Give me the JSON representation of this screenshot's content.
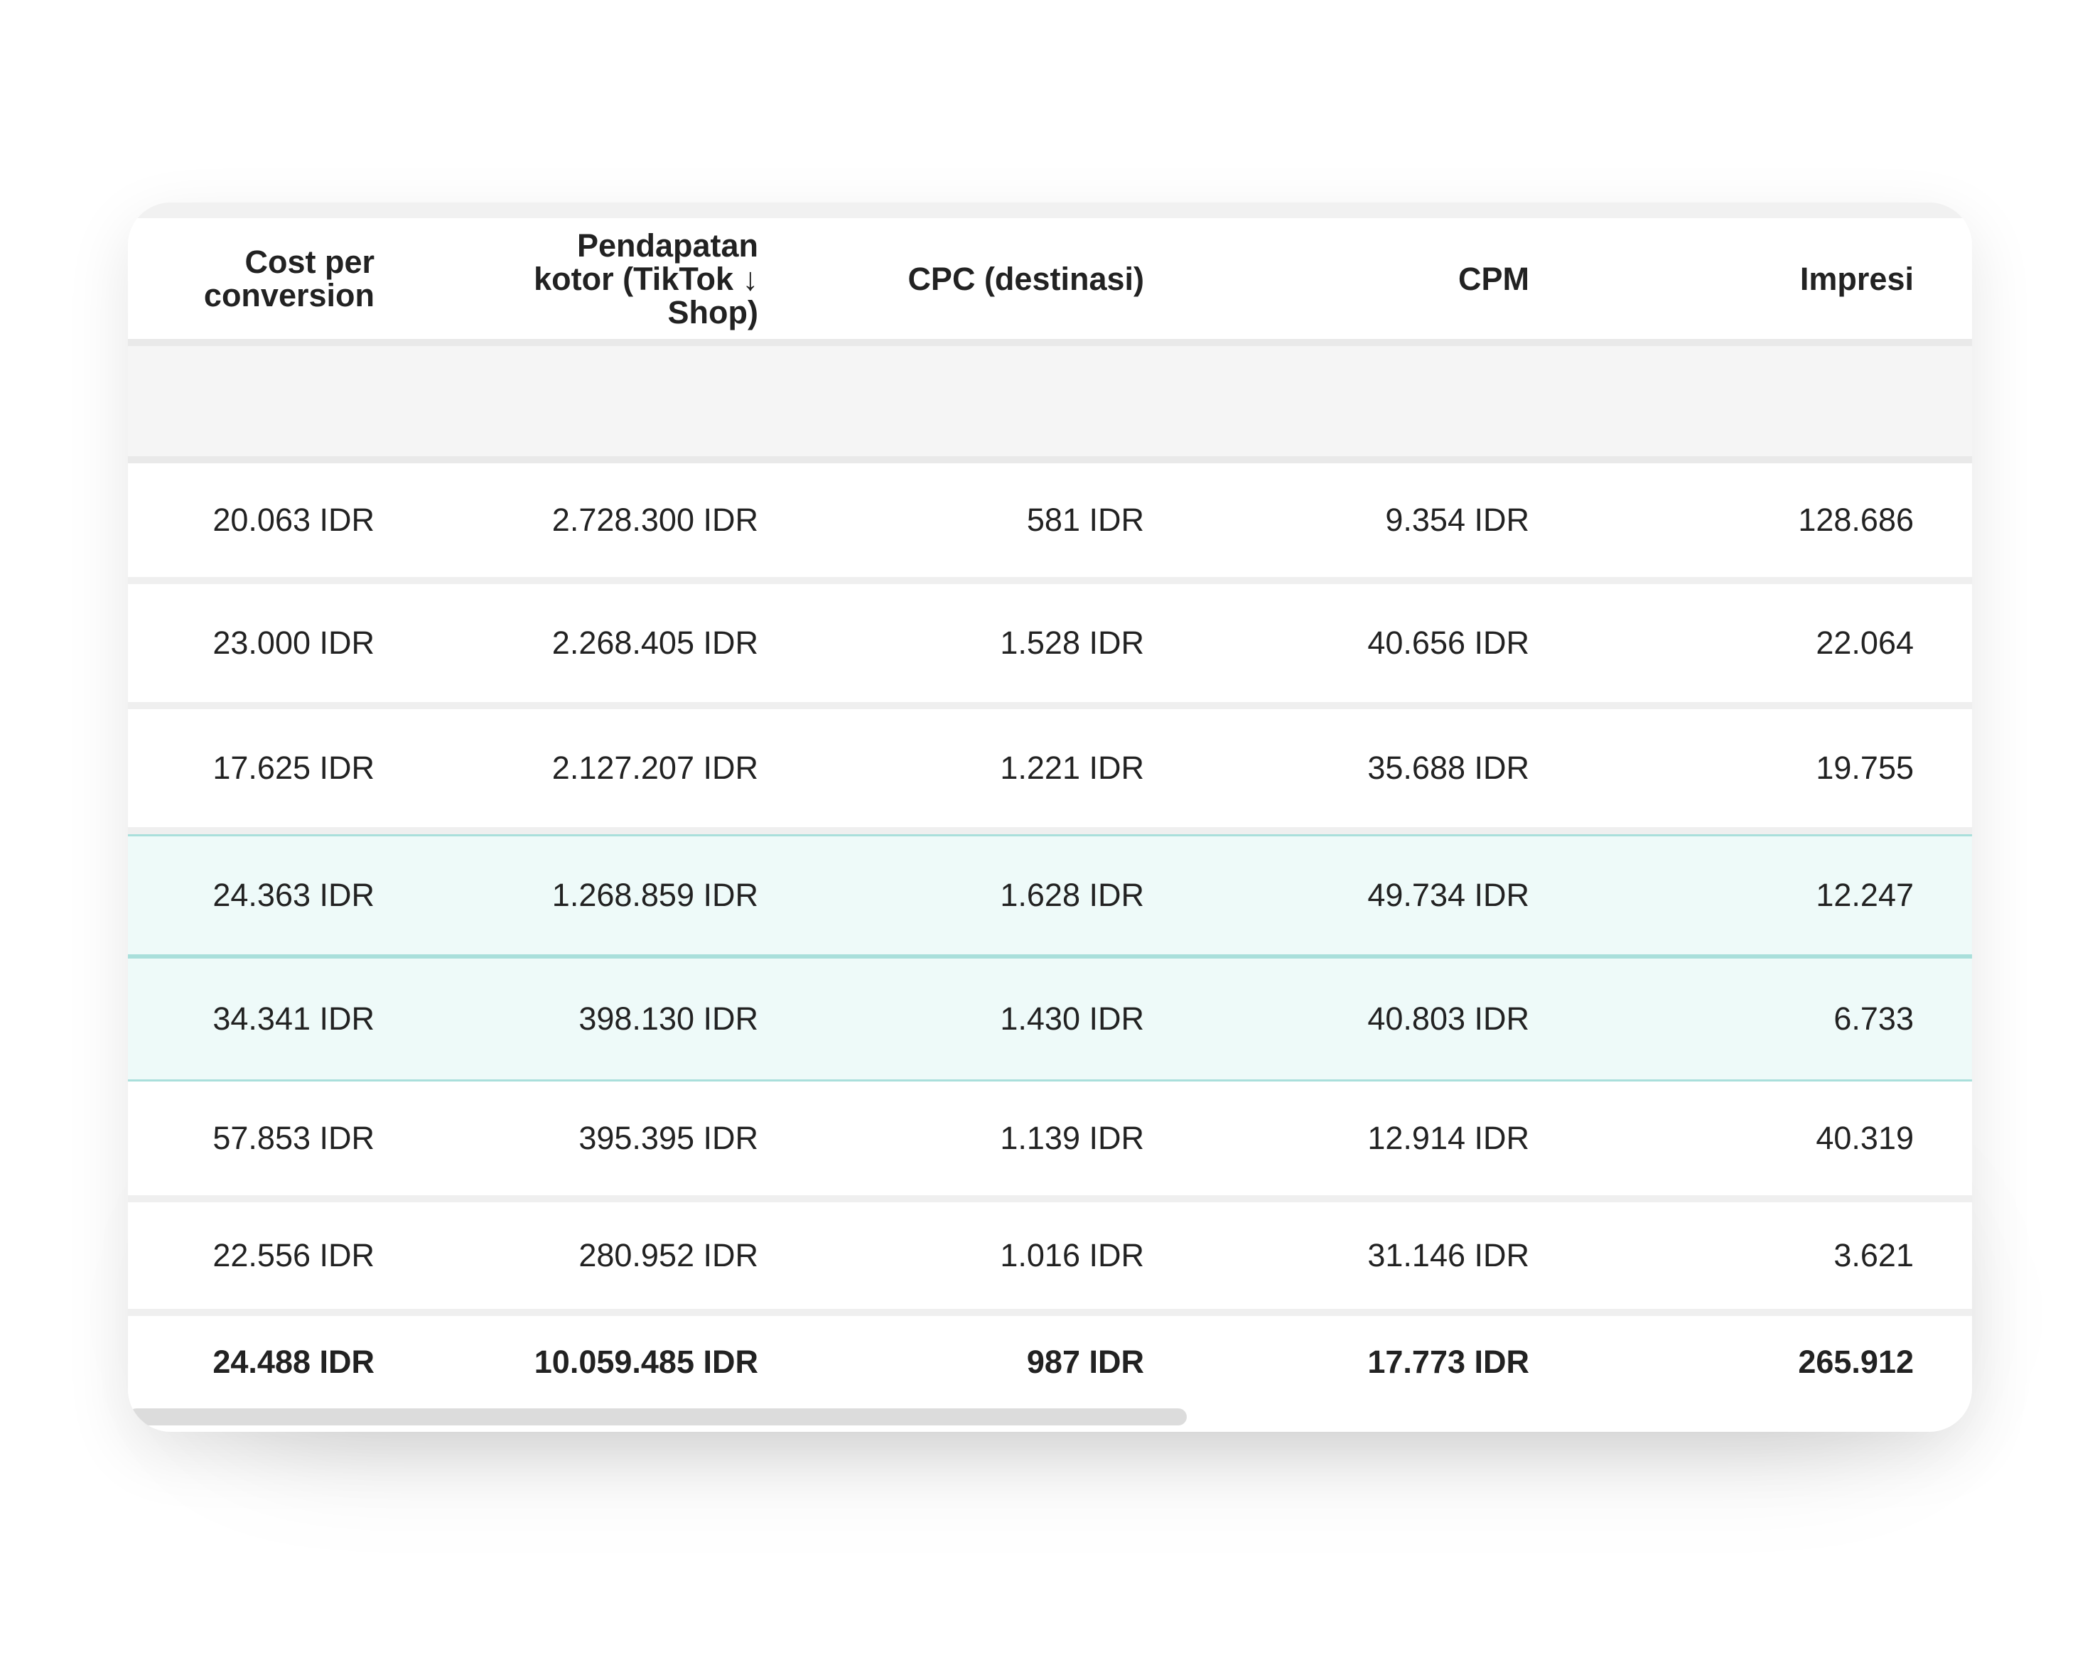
{
  "table": {
    "columns": [
      {
        "label_lines": [
          "Cost per",
          "conversion"
        ]
      },
      {
        "label_lines": [
          "Pendapatan",
          "kotor (TikTok ↓",
          "Shop)"
        ]
      },
      {
        "label_lines": [
          "CPC (destinasi)"
        ]
      },
      {
        "label_lines": [
          "CPM"
        ]
      },
      {
        "label_lines": [
          "Impresi"
        ]
      }
    ],
    "rows": [
      {
        "cells": [
          "20.063 IDR",
          "2.728.300 IDR",
          "581 IDR",
          "9.354 IDR",
          "128.686"
        ]
      },
      {
        "cells": [
          "23.000 IDR",
          "2.268.405 IDR",
          "1.528 IDR",
          "40.656 IDR",
          "22.064"
        ]
      },
      {
        "cells": [
          "17.625 IDR",
          "2.127.207 IDR",
          "1.221 IDR",
          "35.688 IDR",
          "19.755"
        ]
      },
      {
        "cells": [
          "24.363 IDR",
          "1.268.859 IDR",
          "1.628 IDR",
          "49.734 IDR",
          "12.247"
        ]
      },
      {
        "cells": [
          "34.341 IDR",
          "398.130 IDR",
          "1.430 IDR",
          "40.803 IDR",
          "6.733"
        ]
      },
      {
        "cells": [
          "57.853 IDR",
          "395.395 IDR",
          "1.139 IDR",
          "12.914 IDR",
          "40.319"
        ]
      },
      {
        "cells": [
          "22.556 IDR",
          "280.952 IDR",
          "1.016 IDR",
          "31.146 IDR",
          "3.621"
        ]
      }
    ],
    "total": {
      "cells": [
        "24.488 IDR",
        "10.059.485 IDR",
        "987 IDR",
        "17.773 IDR",
        "265.912"
      ]
    },
    "selected_rows": [
      3,
      4
    ]
  },
  "colors": {
    "selected_row_bg": "#eefaf9",
    "selected_row_border": "#a9dfdb",
    "text": "#222222"
  }
}
